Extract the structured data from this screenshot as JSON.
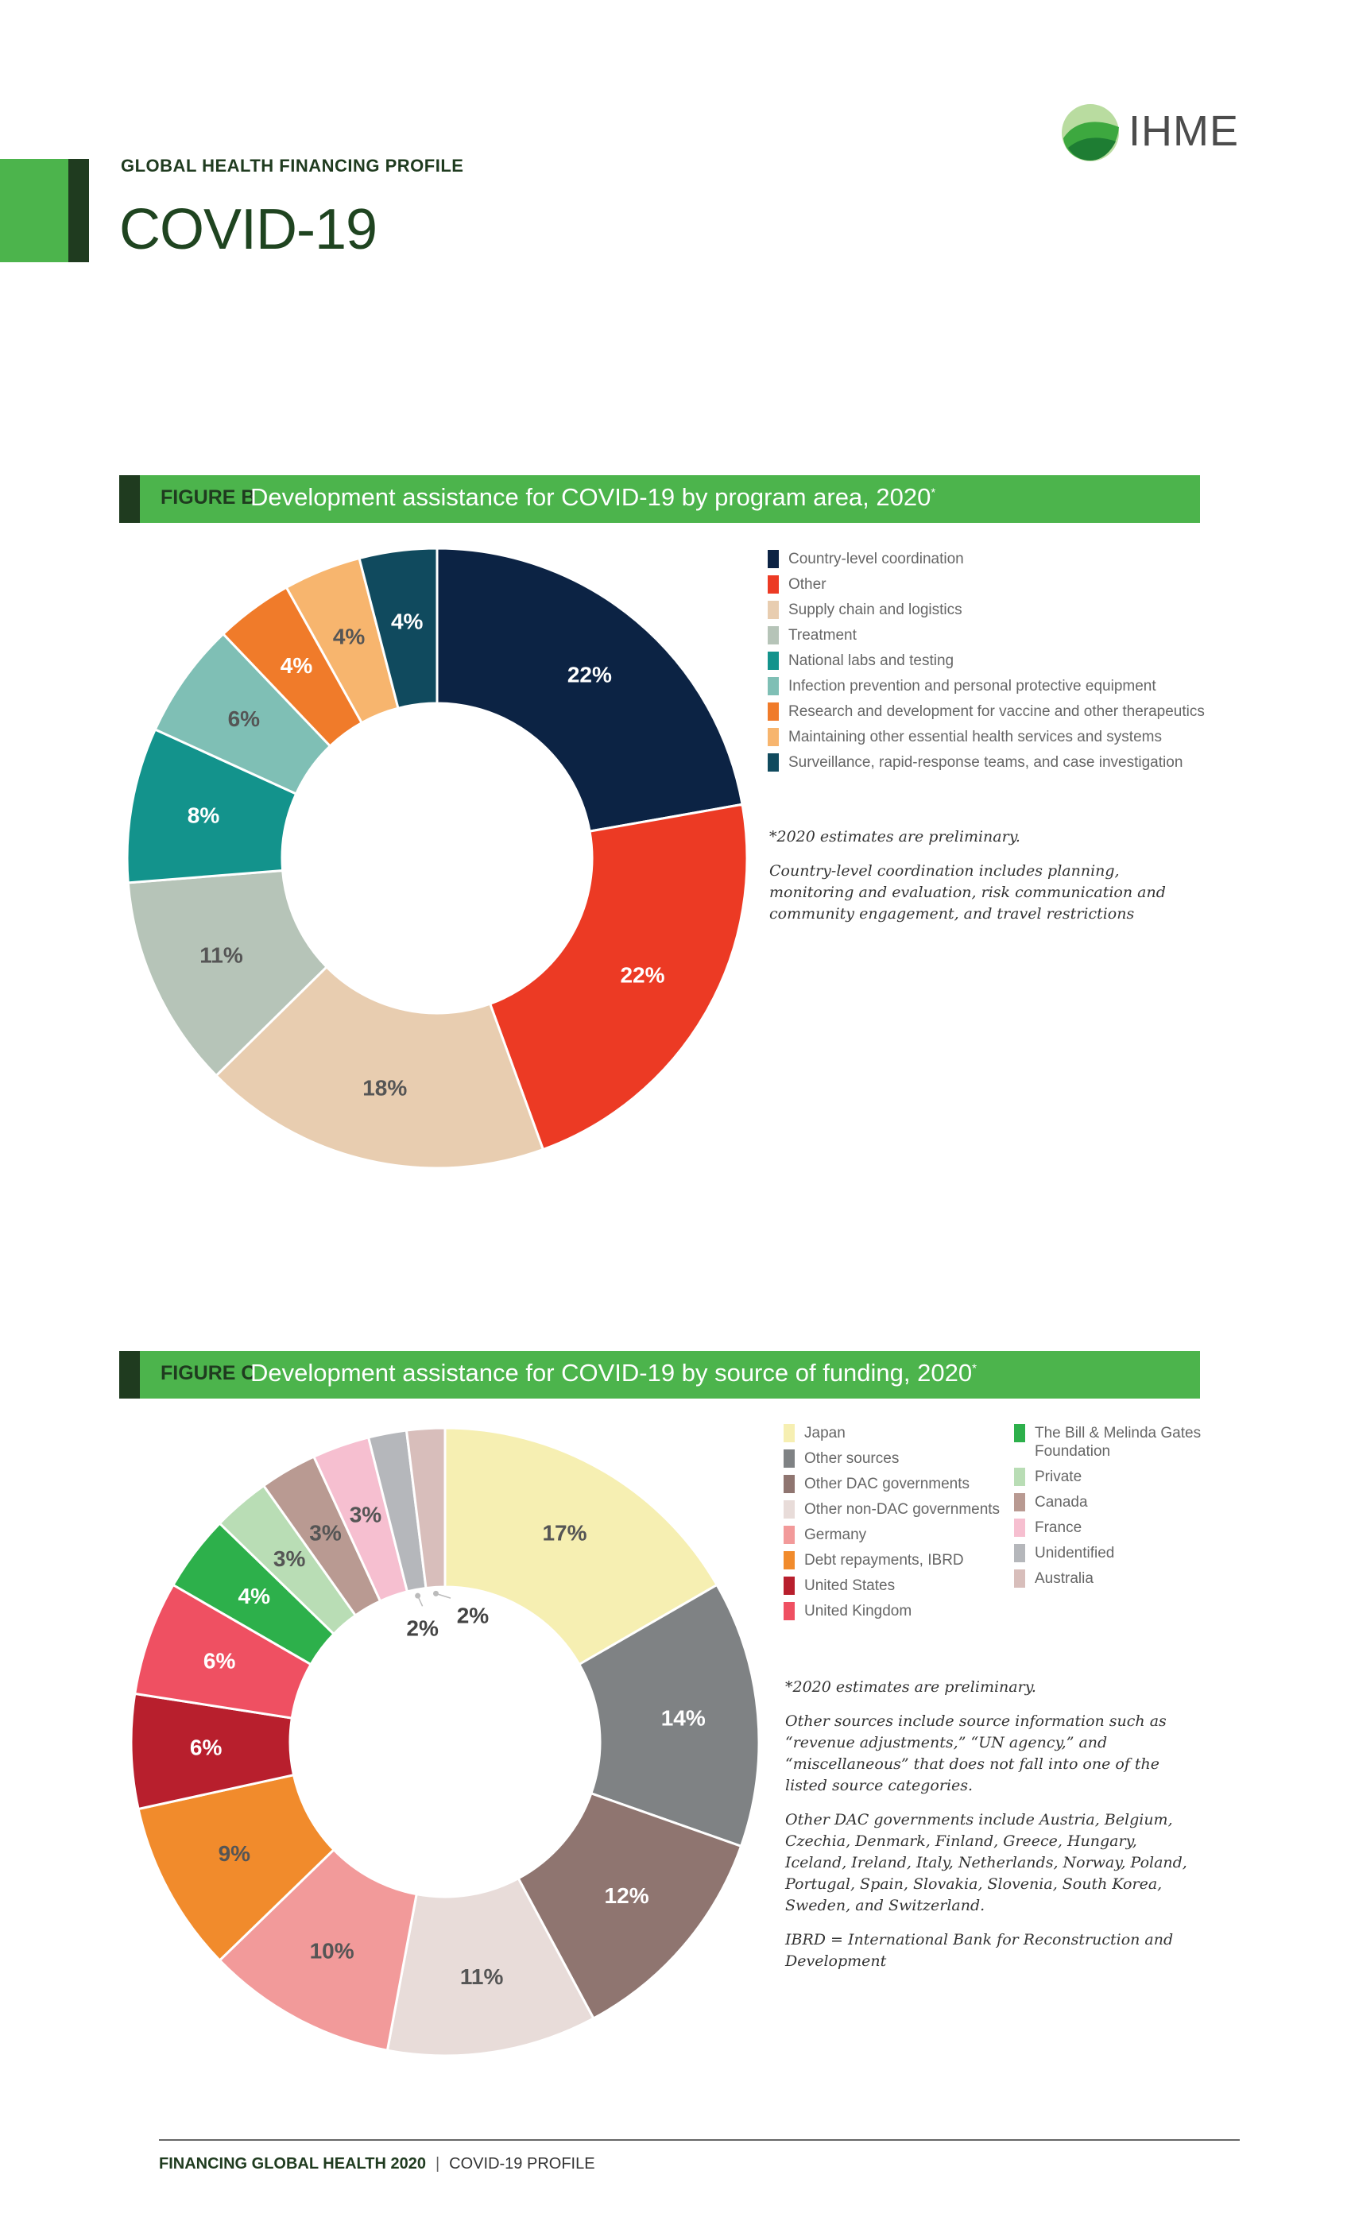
{
  "header": {
    "eyebrow": "GLOBAL HEALTH FINANCING PROFILE",
    "title": "COVID-19",
    "logo_text": "IHME"
  },
  "colors": {
    "brand_green": "#4cb44c",
    "brand_dark": "#1f3b1f"
  },
  "chart_data": [
    {
      "type": "pie",
      "figure_label": "FIGURE B",
      "title": "Development assistance for COVID-19 by program area, 2020",
      "title_marker": "*",
      "legend_position": "right",
      "slices": [
        {
          "name": "Country-level coordination",
          "value": 22,
          "label": "22%",
          "color": "#0c2344"
        },
        {
          "name": "Other",
          "value": 22,
          "label": "22%",
          "color": "#ec3a24"
        },
        {
          "name": "Supply chain and logistics",
          "value": 18,
          "label": "18%",
          "color": "#e8cdb0"
        },
        {
          "name": "Treatment",
          "value": 11,
          "label": "11%",
          "color": "#b6c4b8"
        },
        {
          "name": "National labs and testing",
          "value": 8,
          "label": "8%",
          "color": "#13938c"
        },
        {
          "name": "Infection prevention and personal protective equipment",
          "value": 6,
          "label": "6%",
          "color": "#7fbfb5"
        },
        {
          "name": "Research and development for vaccine and other therapeutics",
          "value": 4,
          "label": "4%",
          "color": "#f07b2a"
        },
        {
          "name": "Maintaining other essential health services and systems",
          "value": 4,
          "label": "4%",
          "color": "#f7b56e"
        },
        {
          "name": "Surveillance, rapid-response teams, and case investigation",
          "value": 4,
          "label": "4%",
          "color": "#104a5e"
        }
      ],
      "notes": [
        "*2020 estimates are preliminary.",
        "Country-level coordination includes planning, monitoring and evaluation, risk communication and community engagement, and travel restrictions"
      ]
    },
    {
      "type": "pie",
      "figure_label": "FIGURE C",
      "title": "Development assistance for COVID-19 by source of funding, 2020",
      "title_marker": "*",
      "legend_position": "right",
      "slices": [
        {
          "name": "Japan",
          "value": 17,
          "label": "17%",
          "color": "#f6efb2"
        },
        {
          "name": "Other sources",
          "value": 14,
          "label": "14%",
          "color": "#7f8284"
        },
        {
          "name": "Other DAC governments",
          "value": 12,
          "label": "12%",
          "color": "#8f7570"
        },
        {
          "name": "Other non-DAC governments",
          "value": 11,
          "label": "11%",
          "color": "#e8dcd9"
        },
        {
          "name": "Germany",
          "value": 10,
          "label": "10%",
          "color": "#f29a9a"
        },
        {
          "name": "Debt repayments, IBRD",
          "value": 9,
          "label": "9%",
          "color": "#f18b2c"
        },
        {
          "name": "United States",
          "value": 6,
          "label": "6%",
          "color": "#b81f2d"
        },
        {
          "name": "United Kingdom",
          "value": 6,
          "label": "6%",
          "color": "#ef5062"
        },
        {
          "name": "The Bill & Melinda Gates Foundation",
          "value": 4,
          "label": "4%",
          "color": "#2db04b"
        },
        {
          "name": "Private",
          "value": 3,
          "label": "3%",
          "color": "#b9ddb5"
        },
        {
          "name": "Canada",
          "value": 3,
          "label": "3%",
          "color": "#b99a92"
        },
        {
          "name": "France",
          "value": 3,
          "label": "3%",
          "color": "#f6bfd0"
        },
        {
          "name": "Unidentified",
          "value": 2,
          "label": "2%",
          "color": "#b5b7bb"
        },
        {
          "name": "Australia",
          "value": 2,
          "label": "2%",
          "color": "#d8bebb"
        }
      ],
      "notes": [
        "*2020 estimates are preliminary.",
        "Other sources include source information such as “revenue adjustments,” “UN agency,” and “miscellaneous” that does not fall into one of the listed source categories.",
        "Other DAC governments include Austria, Belgium, Czechia, Denmark, Finland, Greece, Hungary, Iceland, Ireland, Italy, Netherlands, Norway, Poland, Portugal, Spain, Slovakia, Slovenia, South Korea, Sweden, and Switzerland.",
        "IBRD = International Bank for Reconstruction and Development"
      ]
    }
  ],
  "footer": {
    "left": "FINANCING GLOBAL HEALTH 2020",
    "separator": "|",
    "right": "COVID-19 PROFILE"
  }
}
